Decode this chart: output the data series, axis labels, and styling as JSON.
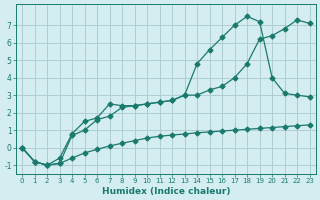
{
  "xlabel": "Humidex (Indice chaleur)",
  "bg_color": "#d4edf0",
  "grid_color": "#b0cdd4",
  "line_color": "#1a7a6e",
  "xlim": [
    -0.5,
    23.5
  ],
  "ylim": [
    -1.5,
    8.2
  ],
  "yticks": [
    -1,
    0,
    1,
    2,
    3,
    4,
    5,
    6,
    7
  ],
  "xticks": [
    0,
    1,
    2,
    3,
    4,
    5,
    6,
    7,
    8,
    9,
    10,
    11,
    12,
    13,
    14,
    15,
    16,
    17,
    18,
    19,
    20,
    21,
    22,
    23
  ],
  "line1_x": [
    0,
    1,
    2,
    3,
    4,
    5,
    6,
    7,
    8,
    9,
    10,
    11,
    12,
    13,
    14,
    15,
    16,
    17,
    18,
    19,
    20,
    21,
    22,
    23
  ],
  "line1_y": [
    0.0,
    -0.8,
    -1.0,
    -0.9,
    -0.6,
    -0.3,
    -0.1,
    0.1,
    0.25,
    0.4,
    0.55,
    0.65,
    0.72,
    0.78,
    0.85,
    0.9,
    0.95,
    1.0,
    1.05,
    1.1,
    1.15,
    1.2,
    1.25,
    1.3
  ],
  "line2_x": [
    0,
    1,
    2,
    3,
    4,
    5,
    6,
    7,
    8,
    9,
    10,
    11,
    12,
    13,
    14,
    15,
    16,
    17,
    18,
    19,
    20,
    21,
    22,
    23
  ],
  "line2_y": [
    0.0,
    -0.8,
    -1.0,
    -0.6,
    0.8,
    1.5,
    1.7,
    2.5,
    2.4,
    2.4,
    2.5,
    2.6,
    2.7,
    3.0,
    4.8,
    5.6,
    6.3,
    7.0,
    7.5,
    7.2,
    4.0,
    3.1,
    3.0,
    2.9
  ],
  "line3_x": [
    0,
    1,
    2,
    3,
    4,
    5,
    6,
    7,
    8,
    9,
    10,
    11,
    12,
    13,
    14,
    15,
    16,
    17,
    18,
    19,
    20,
    21,
    22,
    23
  ],
  "line3_y": [
    0.0,
    -0.8,
    -1.0,
    -0.9,
    0.7,
    1.0,
    1.6,
    1.8,
    2.3,
    2.4,
    2.5,
    2.6,
    2.7,
    3.0,
    3.0,
    3.3,
    3.5,
    4.0,
    4.8,
    6.2,
    6.4,
    6.8,
    7.3,
    7.1
  ],
  "marker": "D",
  "markersize": 2.5,
  "linewidth": 0.9
}
